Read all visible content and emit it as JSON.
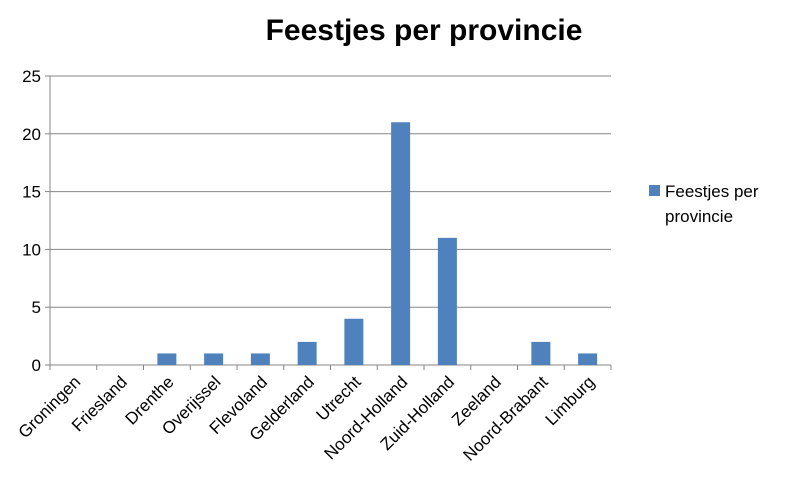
{
  "chart_data": {
    "type": "bar",
    "title": "Feestjes per provincie",
    "xlabel": "",
    "ylabel": "",
    "categories": [
      "Groningen",
      "Friesland",
      "Drenthe",
      "Overijssel",
      "Flevoland",
      "Gelderland",
      "Utrecht",
      "Noord-Holland",
      "Zuid-Holland",
      "Zeeland",
      "Noord-Brabant",
      "Limburg"
    ],
    "series": [
      {
        "name": "Feestjes per provincie",
        "values": [
          0,
          0,
          1,
          1,
          1,
          2,
          4,
          21,
          11,
          0,
          2,
          1
        ],
        "color": "#4f81bd"
      }
    ],
    "ylim": [
      0,
      25
    ],
    "yticks": [
      0,
      5,
      10,
      15,
      20,
      25
    ],
    "grid": true,
    "legend": {
      "position": "right",
      "lines": [
        "Feestjes per",
        "provincie"
      ]
    }
  }
}
